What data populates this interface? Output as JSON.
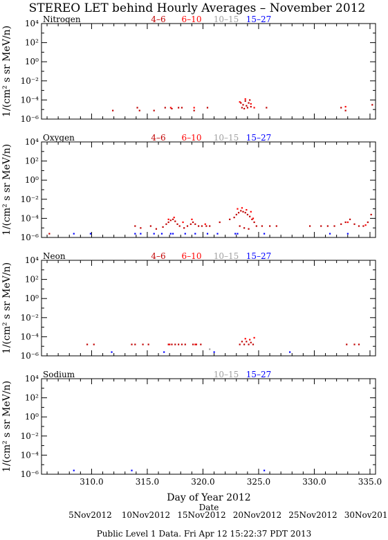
{
  "colors": {
    "frame": "#000000",
    "series_4_6": "#c00000",
    "series_6_10": "#ff0000",
    "series_10_15": "#a0a0a0",
    "series_15_27": "#0000ff"
  },
  "header": {
    "title": "STEREO LET behind Hourly Averages – November 2012"
  },
  "footer": {
    "xlabel": "Day of Year 2012",
    "date_label": "Date",
    "date_ticks": [
      "5Nov2012",
      "10Nov2012",
      "15Nov2012",
      "20Nov2012",
      "25Nov2012",
      "30Nov2012"
    ],
    "notice": "Public Level 1 Data. Fri Apr 12 15:22:37 PDT 2013"
  },
  "chart_data": [
    {
      "type": "scatter",
      "panel": "Nitrogen",
      "ylabel": "1/(cm² s sr MeV/n)",
      "xlim": [
        305.5,
        335.5
      ],
      "ylog": true,
      "ylim_exp": [
        -6,
        4
      ],
      "y_ticks": [
        "10⁴",
        "10²",
        "10⁰",
        "10⁻²",
        "10⁻⁴",
        "10⁻⁶"
      ],
      "x_ticks": [],
      "legend": [
        {
          "name": "4–6",
          "color": "#c00000"
        },
        {
          "name": "6–10",
          "color": "#ff0000"
        },
        {
          "name": "10–15",
          "color": "#a0a0a0"
        },
        {
          "name": "15–27",
          "color": "#0000ff"
        }
      ],
      "series": [
        {
          "name": "4–6",
          "color": "#c00000",
          "points": [
            [
              311.9,
              -5.1
            ],
            [
              314.1,
              -4.8
            ],
            [
              314.3,
              -5.1
            ],
            [
              315.6,
              -5.1
            ],
            [
              316.6,
              -4.8
            ],
            [
              317.2,
              -4.9
            ],
            [
              317.8,
              -4.8
            ],
            [
              318.1,
              -4.8
            ],
            [
              319.2,
              -5.1
            ],
            [
              320.4,
              -4.8
            ],
            [
              323.4,
              -4.3
            ],
            [
              323.6,
              -4.5
            ],
            [
              323.8,
              -4.1
            ],
            [
              323.9,
              -4.6
            ],
            [
              324.1,
              -4.3
            ],
            [
              324.2,
              -4.0
            ],
            [
              323.5,
              -4.8
            ],
            [
              323.7,
              -4.9
            ],
            [
              324.0,
              -4.8
            ],
            [
              324.3,
              -4.7
            ],
            [
              325.7,
              -4.8
            ],
            [
              332.4,
              -4.8
            ],
            [
              332.8,
              -5.1
            ],
            [
              335.2,
              -4.5
            ]
          ]
        },
        {
          "name": "6–10",
          "color": "#ff0000",
          "points": [
            [
              317.1,
              -4.8
            ],
            [
              319.2,
              -4.8
            ],
            [
              323.3,
              -4.2
            ],
            [
              323.8,
              -3.9
            ],
            [
              324.3,
              -4.4
            ],
            [
              324.6,
              -4.8
            ],
            [
              332.8,
              -4.7
            ]
          ]
        }
      ]
    },
    {
      "type": "scatter",
      "panel": "Oxygen",
      "ylabel": "1/(cm² s sr MeV/n)",
      "xlim": [
        305.5,
        335.5
      ],
      "ylog": true,
      "ylim_exp": [
        -6,
        4
      ],
      "y_ticks": [
        "10⁴",
        "10²",
        "10⁰",
        "10⁻²",
        "10⁻⁴",
        "10⁻⁶"
      ],
      "x_ticks": [],
      "legend": [
        {
          "name": "4–6",
          "color": "#c00000"
        },
        {
          "name": "6–10",
          "color": "#ff0000"
        },
        {
          "name": "10–15",
          "color": "#a0a0a0"
        },
        {
          "name": "15–27",
          "color": "#0000ff"
        }
      ],
      "series": [
        {
          "name": "4–6",
          "color": "#c00000",
          "points": [
            [
              306.2,
              -5.6
            ],
            [
              313.9,
              -4.8
            ],
            [
              314.4,
              -5.0
            ],
            [
              315.3,
              -4.8
            ],
            [
              315.8,
              -5.1
            ],
            [
              316.4,
              -4.9
            ],
            [
              316.7,
              -4.6
            ],
            [
              316.9,
              -4.4
            ],
            [
              317.1,
              -4.2
            ],
            [
              317.3,
              -4.1
            ],
            [
              317.5,
              -4.3
            ],
            [
              317.7,
              -4.6
            ],
            [
              317.9,
              -4.8
            ],
            [
              318.3,
              -5.0
            ],
            [
              318.6,
              -4.8
            ],
            [
              318.9,
              -4.6
            ],
            [
              319.1,
              -4.4
            ],
            [
              319.3,
              -4.6
            ],
            [
              319.6,
              -4.8
            ],
            [
              319.9,
              -4.8
            ],
            [
              320.3,
              -4.8
            ],
            [
              320.6,
              -4.8
            ],
            [
              321.5,
              -4.4
            ],
            [
              322.4,
              -4.1
            ],
            [
              322.8,
              -3.9
            ],
            [
              323.0,
              -3.6
            ],
            [
              323.2,
              -3.4
            ],
            [
              323.4,
              -3.2
            ],
            [
              323.6,
              -3.3
            ],
            [
              323.8,
              -3.4
            ],
            [
              324.0,
              -3.6
            ],
            [
              324.2,
              -3.8
            ],
            [
              324.4,
              -4.1
            ],
            [
              324.6,
              -4.4
            ],
            [
              324.8,
              -4.8
            ],
            [
              323.3,
              -4.8
            ],
            [
              323.7,
              -5.0
            ],
            [
              324.1,
              -5.1
            ],
            [
              325.3,
              -4.8
            ],
            [
              326.0,
              -4.8
            ],
            [
              326.6,
              -4.8
            ],
            [
              329.6,
              -4.8
            ],
            [
              330.6,
              -4.8
            ],
            [
              331.2,
              -4.8
            ],
            [
              331.8,
              -4.8
            ],
            [
              332.4,
              -4.6
            ],
            [
              332.8,
              -4.4
            ],
            [
              333.2,
              -4.1
            ],
            [
              333.6,
              -4.6
            ],
            [
              334.0,
              -4.8
            ],
            [
              334.4,
              -4.8
            ],
            [
              334.8,
              -4.4
            ],
            [
              335.1,
              -3.6
            ]
          ]
        },
        {
          "name": "6–10",
          "color": "#ff0000",
          "points": [
            [
              316.9,
              -4.1
            ],
            [
              317.4,
              -3.9
            ],
            [
              318.2,
              -4.4
            ],
            [
              319.0,
              -4.1
            ],
            [
              320.2,
              -4.6
            ],
            [
              323.1,
              -3.0
            ],
            [
              323.5,
              -2.9
            ],
            [
              323.9,
              -3.1
            ],
            [
              324.3,
              -3.3
            ],
            [
              324.5,
              -4.0
            ],
            [
              333.0,
              -4.4
            ],
            [
              334.6,
              -4.7
            ]
          ]
        },
        {
          "name": "15–27",
          "color": "#0000ff",
          "points": [
            [
              308.4,
              -5.6
            ],
            [
              309.9,
              -5.6
            ],
            [
              313.9,
              -5.6
            ],
            [
              314.4,
              -5.6
            ],
            [
              315.6,
              -5.6
            ],
            [
              316.3,
              -5.6
            ],
            [
              317.1,
              -5.6
            ],
            [
              317.3,
              -5.6
            ],
            [
              318.4,
              -5.6
            ],
            [
              319.3,
              -5.6
            ],
            [
              320.4,
              -5.6
            ],
            [
              321.3,
              -5.6
            ],
            [
              322.9,
              -5.6
            ],
            [
              323.1,
              -5.6
            ],
            [
              325.5,
              -5.6
            ],
            [
              331.4,
              -5.6
            ],
            [
              333.0,
              -5.6
            ]
          ]
        }
      ]
    },
    {
      "type": "scatter",
      "panel": "Neon",
      "ylabel": "1/(cm² s sr MeV/n)",
      "xlim": [
        305.5,
        335.5
      ],
      "ylog": true,
      "ylim_exp": [
        -6,
        4
      ],
      "y_ticks": [
        "10⁴",
        "10²",
        "10⁰",
        "10⁻²",
        "10⁻⁴",
        "10⁻⁶"
      ],
      "x_ticks": [],
      "legend": [
        {
          "name": "4–6",
          "color": "#c00000"
        },
        {
          "name": "6–10",
          "color": "#ff0000"
        },
        {
          "name": "10–15",
          "color": "#a0a0a0"
        },
        {
          "name": "15–27",
          "color": "#0000ff"
        }
      ],
      "series": [
        {
          "name": "4–6",
          "color": "#c00000",
          "points": [
            [
              309.6,
              -4.8
            ],
            [
              310.2,
              -4.8
            ],
            [
              313.6,
              -4.8
            ],
            [
              313.9,
              -4.8
            ],
            [
              314.6,
              -4.8
            ],
            [
              315.1,
              -4.8
            ],
            [
              316.9,
              -4.8
            ],
            [
              317.2,
              -4.8
            ],
            [
              317.5,
              -4.8
            ],
            [
              317.8,
              -4.8
            ],
            [
              318.1,
              -4.8
            ],
            [
              318.4,
              -4.8
            ],
            [
              319.1,
              -4.8
            ],
            [
              319.4,
              -4.8
            ],
            [
              319.8,
              -4.8
            ],
            [
              323.3,
              -4.8
            ],
            [
              323.5,
              -4.5
            ],
            [
              323.7,
              -4.8
            ],
            [
              323.9,
              -4.5
            ],
            [
              324.1,
              -4.8
            ],
            [
              324.3,
              -4.6
            ],
            [
              324.5,
              -4.8
            ],
            [
              332.9,
              -4.8
            ],
            [
              333.6,
              -4.8
            ],
            [
              334.0,
              -4.8
            ]
          ]
        },
        {
          "name": "6–10",
          "color": "#ff0000",
          "points": [
            [
              323.8,
              -4.2
            ],
            [
              324.2,
              -4.3
            ],
            [
              324.6,
              -4.1
            ],
            [
              317.0,
              -4.8
            ],
            [
              319.3,
              -4.8
            ]
          ]
        },
        {
          "name": "10–15",
          "color": "#a0a0a0",
          "points": [
            [
              320.6,
              -5.3
            ]
          ]
        },
        {
          "name": "15–27",
          "color": "#0000ff",
          "points": [
            [
              311.8,
              -5.6
            ],
            [
              316.5,
              -5.6
            ],
            [
              321.0,
              -5.6
            ],
            [
              327.8,
              -5.6
            ]
          ]
        }
      ]
    },
    {
      "type": "scatter",
      "panel": "Sodium",
      "ylabel": "1/(cm² s sr MeV/n)",
      "xlim": [
        305.5,
        335.5
      ],
      "ylog": true,
      "ylim_exp": [
        -6,
        4
      ],
      "y_ticks": [
        "10⁴",
        "10²",
        "10⁰",
        "10⁻²",
        "10⁻⁴",
        "10⁻⁶"
      ],
      "x_ticks": [
        "310.0",
        "315.0",
        "320.0",
        "325.0",
        "330.0",
        "335.0"
      ],
      "legend": [
        {
          "name": "10–15",
          "color": "#a0a0a0"
        },
        {
          "name": "15–27",
          "color": "#0000ff"
        }
      ],
      "series": [
        {
          "name": "15–27",
          "color": "#0000ff",
          "points": [
            [
              308.4,
              -5.6
            ],
            [
              313.6,
              -5.6
            ],
            [
              325.5,
              -5.6
            ]
          ]
        }
      ]
    }
  ]
}
